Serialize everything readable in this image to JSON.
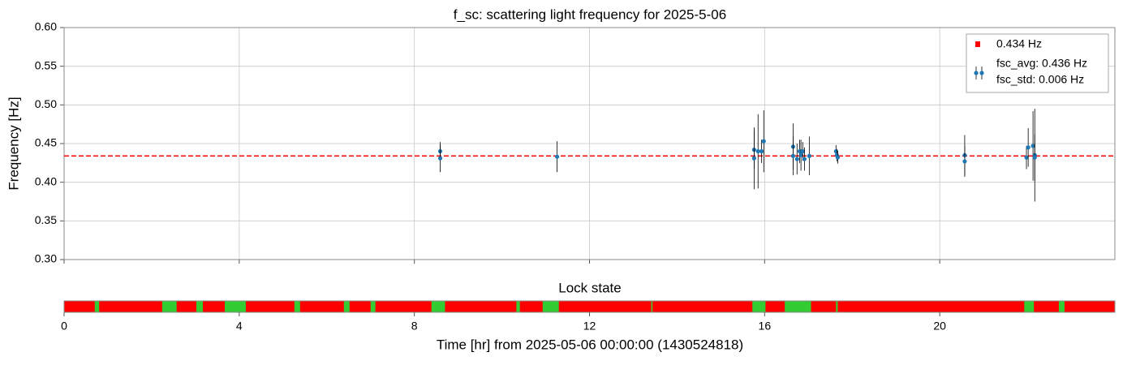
{
  "chart_data": [
    {
      "type": "errorbar",
      "title": "f_sc: scattering light frequency for 2025-5-06",
      "y_label": "Frequency [Hz]",
      "xlim": [
        0,
        24
      ],
      "xticks": [
        0,
        4,
        8,
        12,
        16,
        20
      ],
      "ylim": [
        0.3,
        0.6
      ],
      "yticks": [
        {
          "value": 0.3,
          "label": "0.30"
        },
        0.35,
        {
          "value": 0.4,
          "label": "0.40"
        },
        0.45,
        {
          "value": 0.5,
          "label": "0.50"
        },
        0.55,
        {
          "value": 0.6,
          "label": "0.60"
        }
      ],
      "grid": true,
      "legend": "upper right",
      "reference_line": {
        "name": "0.434 Hz",
        "value": 0.434,
        "color": "#ff0000"
      },
      "series": [
        {
          "name": "fsc_avg: 0.436 Hz",
          "legend_note": "fsc_std: 0.006 Hz",
          "color": "#1f77b4",
          "error_color": "#000000",
          "x": [
            8.59,
            8.59,
            11.26,
            15.76,
            15.76,
            15.85,
            15.93,
            15.98,
            16.65,
            16.65,
            16.74,
            16.8,
            16.83,
            16.87,
            16.91,
            17.02,
            17.63,
            17.65,
            17.67,
            20.57,
            20.57,
            21.98,
            22.02,
            22.13,
            22.17,
            22.17
          ],
          "values": [
            0.44,
            0.431,
            0.433,
            0.442,
            0.431,
            0.44,
            0.44,
            0.453,
            0.446,
            0.434,
            0.43,
            0.44,
            0.435,
            0.44,
            0.43,
            0.434,
            0.44,
            0.435,
            0.432,
            0.435,
            0.427,
            0.432,
            0.445,
            0.447,
            0.435,
            0.432
          ],
          "errors": [
            0.012,
            0.018,
            0.02,
            0.025,
            0.04,
            0.048,
            0.015,
            0.04,
            0.03,
            0.025,
            0.02,
            0.015,
            0.02,
            0.012,
            0.015,
            0.025,
            0.008,
            0.008,
            0.008,
            0.026,
            0.02,
            0.015,
            0.025,
            0.045,
            0.06,
            0.03
          ]
        }
      ]
    },
    {
      "type": "timeline",
      "title": "Lock state",
      "x_label": "Time [hr] from 2025-05-06 00:00:00 (1430524818)",
      "xlim": [
        0,
        24
      ],
      "xticks": [
        0,
        4,
        8,
        12,
        16,
        20
      ],
      "locked_color": "#33cc33",
      "unlocked_color": "#ff0000",
      "locked_intervals": [
        [
          0.7,
          0.8
        ],
        [
          2.24,
          2.57
        ],
        [
          3.02,
          3.17
        ],
        [
          3.67,
          4.15
        ],
        [
          5.26,
          5.39
        ],
        [
          6.39,
          6.52
        ],
        [
          7.0,
          7.11
        ],
        [
          8.39,
          8.7
        ],
        [
          10.33,
          10.41
        ],
        [
          10.93,
          11.3
        ],
        [
          13.41,
          13.44
        ],
        [
          15.72,
          16.02
        ],
        [
          16.46,
          17.06
        ],
        [
          17.63,
          17.67
        ],
        [
          21.93,
          22.15
        ],
        [
          22.72,
          22.85
        ]
      ]
    }
  ]
}
